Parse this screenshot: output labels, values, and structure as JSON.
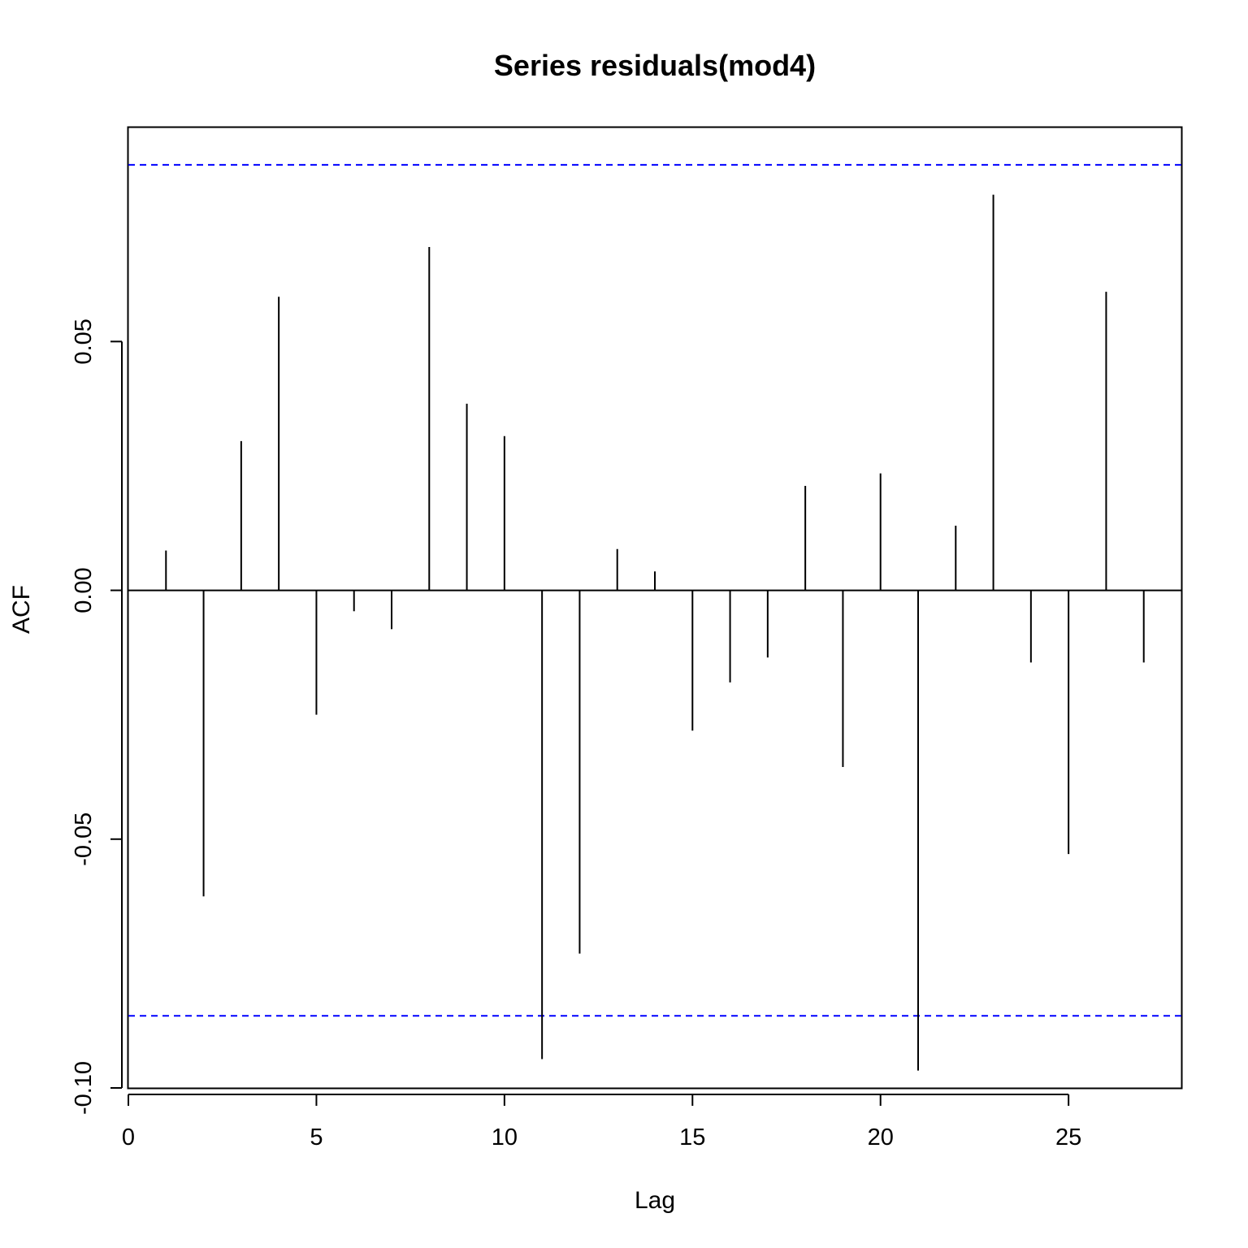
{
  "chart_data": {
    "type": "bar",
    "title": "Series residuals(mod4)",
    "xlabel": "Lag",
    "ylabel": "ACF",
    "xlim": [
      0,
      28
    ],
    "ylim": [
      -0.1,
      0.093
    ],
    "x_ticks": [
      0,
      5,
      10,
      15,
      20,
      25
    ],
    "x_tick_labels": [
      "0",
      "5",
      "10",
      "15",
      "20",
      "25"
    ],
    "y_ticks": [
      -0.1,
      -0.05,
      0.0,
      0.05
    ],
    "y_tick_labels": [
      "-0.10",
      "-0.05",
      "0.00",
      "0.05"
    ],
    "confidence_bounds": [
      0.0855,
      -0.0855
    ],
    "confidence_color": "#0000ff",
    "bar_color": "#000000",
    "grid": false,
    "series": [
      {
        "x": [
          1,
          2,
          3,
          4,
          5,
          6,
          7,
          8,
          9,
          10,
          11,
          12,
          13,
          14,
          15,
          16,
          17,
          18,
          19,
          20,
          21,
          22,
          23,
          24,
          25,
          26,
          27
        ],
        "values": [
          0.008,
          -0.0615,
          0.03,
          0.059,
          -0.025,
          -0.0042,
          -0.0078,
          0.069,
          0.0375,
          0.031,
          -0.0942,
          -0.073,
          0.0083,
          0.0038,
          -0.0282,
          -0.0185,
          -0.0135,
          0.021,
          -0.0355,
          0.0235,
          -0.0965,
          0.013,
          0.0795,
          -0.0145,
          -0.053,
          0.06,
          -0.0145
        ]
      }
    ]
  }
}
